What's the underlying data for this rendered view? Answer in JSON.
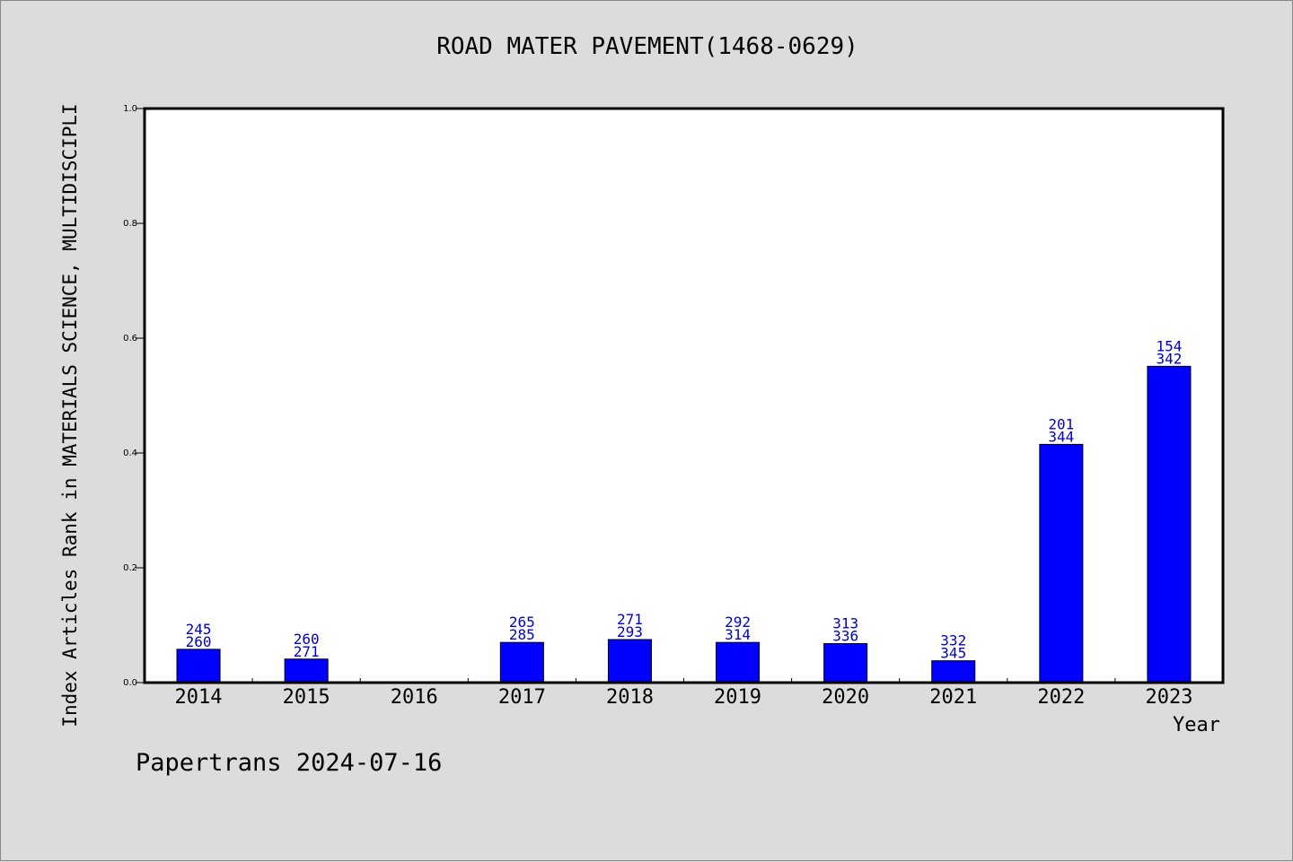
{
  "chart_data": {
    "type": "bar",
    "title": "ROAD MATER PAVEMENT(1468-0629)",
    "xlabel": "Year",
    "ylabel": "Index Articles Rank in MATERIALS SCIENCE, MULTIDISCIPLI",
    "ylim": [
      0,
      1.0
    ],
    "yticks": [
      "0.0",
      "0.2",
      "0.4",
      "0.6",
      "0.8",
      "1.0"
    ],
    "categories": [
      "2014",
      "2015",
      "2016",
      "2017",
      "2018",
      "2019",
      "2020",
      "2021",
      "2022",
      "2023"
    ],
    "values": [
      0.058,
      0.041,
      null,
      0.07,
      0.075,
      0.07,
      0.068,
      0.038,
      0.415,
      0.551
    ],
    "labels": [
      [
        "245",
        "260"
      ],
      [
        "260",
        "271"
      ],
      null,
      [
        "265",
        "285"
      ],
      [
        "271",
        "293"
      ],
      [
        "292",
        "314"
      ],
      [
        "313",
        "336"
      ],
      [
        "332",
        "345"
      ],
      [
        "201",
        "344"
      ],
      [
        "154",
        "342"
      ]
    ],
    "colors": {
      "bar": "#0000ff",
      "label": "#0000cc",
      "background": "#dcdcdc",
      "plot": "#ffffff"
    },
    "grid": false,
    "legend": "none"
  },
  "footer": "Papertrans 2024-07-16"
}
